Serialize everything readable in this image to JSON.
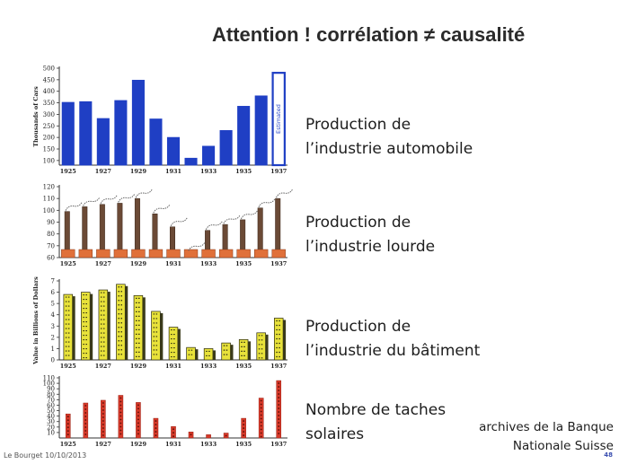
{
  "slide": {
    "title": "Attention !   corrélation ≠ causalité",
    "captions": [
      {
        "line1": "Production de",
        "line2": "l’industrie automobile"
      },
      {
        "line1": "Production de",
        "line2": "l’industrie lourde"
      },
      {
        "line1": "Production de",
        "line2": "l’industrie du bâtiment"
      },
      {
        "line1": "Nombre de taches",
        "line2": "solaires"
      }
    ],
    "source_line1": "archives de la Banque",
    "source_line2": "Nationale Suisse",
    "footer": "Le Bourget 10/10/2013",
    "page_number": "48"
  },
  "chart_data": [
    {
      "type": "bar",
      "style": "solid-blue",
      "color": "#1f3fc4",
      "ylabel": "Thousands of Cars",
      "yticks": [
        100,
        150,
        200,
        250,
        300,
        350,
        400,
        450,
        500
      ],
      "ylim": [
        80,
        500
      ],
      "xtick_labels": [
        "1925",
        "1927",
        "1929",
        "1931",
        "1933",
        "1935",
        "1937"
      ],
      "categories": [
        "1925",
        "1926",
        "1927",
        "1928",
        "1929",
        "1930",
        "1931",
        "1932",
        "1933",
        "1934",
        "1935",
        "1936",
        "1937"
      ],
      "values": [
        352,
        355,
        282,
        360,
        448,
        280,
        200,
        110,
        162,
        230,
        335,
        380,
        480
      ],
      "annotation": "Estimated",
      "annotated_category": "1937"
    },
    {
      "type": "bar",
      "style": "smokestack",
      "color": "#6b4a36",
      "base_color": "#e0703a",
      "ylabel": "",
      "yticks": [
        60,
        70,
        80,
        90,
        100,
        110,
        120
      ],
      "ylim": [
        60,
        120
      ],
      "xtick_labels": [
        "1925",
        "1927",
        "1929",
        "1931",
        "1933",
        "1935",
        "1937"
      ],
      "categories": [
        "1925",
        "1926",
        "1927",
        "1928",
        "1929",
        "1930",
        "1931",
        "1932",
        "1933",
        "1934",
        "1935",
        "1936",
        "1937"
      ],
      "values": [
        99,
        103,
        105,
        106,
        110,
        97,
        86,
        65,
        83,
        88,
        92,
        102,
        110
      ]
    },
    {
      "type": "bar",
      "style": "building",
      "color": "#e8e23a",
      "ylabel": "Value in Billions of Dollars",
      "yticks": [
        0,
        1,
        2,
        3,
        4,
        5,
        6,
        7
      ],
      "ylim": [
        0,
        7
      ],
      "xtick_labels": [
        "1925",
        "1927",
        "1929",
        "1931",
        "1933",
        "1935",
        "1937"
      ],
      "categories": [
        "1925",
        "1926",
        "1927",
        "1928",
        "1929",
        "1930",
        "1931",
        "1932",
        "1933",
        "1934",
        "1935",
        "1936",
        "1937"
      ],
      "values": [
        5.8,
        6.0,
        6.2,
        6.7,
        5.7,
        4.3,
        2.9,
        1.1,
        1.0,
        1.5,
        1.8,
        2.4,
        3.7
      ]
    },
    {
      "type": "bar",
      "style": "dotted-red",
      "color": "#d73a2a",
      "ylabel": "",
      "yticks": [
        10,
        20,
        30,
        40,
        50,
        60,
        70,
        80,
        90,
        100,
        110
      ],
      "ylim": [
        0,
        110
      ],
      "xtick_labels": [
        "1925",
        "1927",
        "1929",
        "1931",
        "1933",
        "1935",
        "1937"
      ],
      "categories": [
        "1925",
        "1926",
        "1927",
        "1928",
        "1929",
        "1930",
        "1931",
        "1932",
        "1933",
        "1934",
        "1935",
        "1936",
        "1937"
      ],
      "values": [
        44,
        64,
        69,
        78,
        65,
        36,
        21,
        11,
        6,
        9,
        36,
        73,
        105
      ]
    }
  ]
}
